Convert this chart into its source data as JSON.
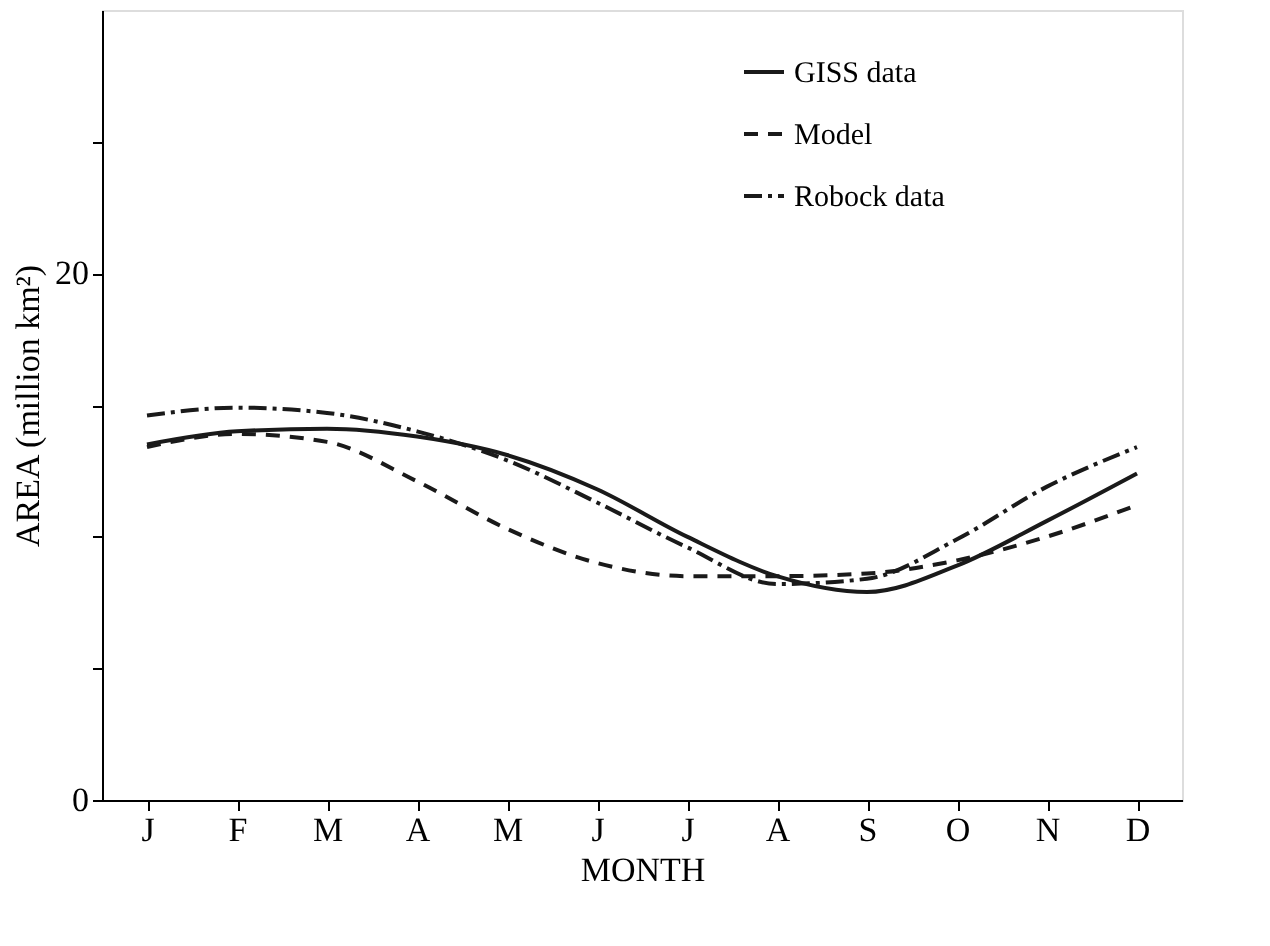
{
  "chart_data": {
    "type": "line",
    "xlabel": "MONTH",
    "ylabel": "AREA (million km²)",
    "categories": [
      "J",
      "F",
      "M",
      "A",
      "M",
      "J",
      "J",
      "A",
      "S",
      "O",
      "N",
      "D"
    ],
    "ylim": [
      0,
      30
    ],
    "yticks": [
      0,
      {
        "value": 5,
        "label": null
      },
      {
        "value": 10,
        "label": null
      },
      {
        "value": 15,
        "label": null
      },
      20,
      {
        "value": 25,
        "label": null
      }
    ],
    "legend": "top right",
    "grid": false,
    "series": [
      {
        "name": "GISS data",
        "color": "#1a1a1a",
        "line_style": "solid",
        "values": [
          13.5,
          14.0,
          14.1,
          13.8,
          13.1,
          11.8,
          10.0,
          8.5,
          7.9,
          8.9,
          10.6,
          12.4
        ]
      },
      {
        "name": "Model",
        "color": "#1a1a1a",
        "line_style": "dashed",
        "values": [
          13.4,
          13.9,
          13.6,
          12.1,
          10.3,
          9.0,
          8.5,
          8.5,
          8.6,
          9.1,
          10.0,
          11.2
        ]
      },
      {
        "name": "Robock data",
        "color": "#1a1a1a",
        "line_style": "dashdot",
        "values": [
          14.6,
          14.9,
          14.7,
          14.0,
          12.9,
          11.3,
          9.6,
          8.2,
          8.4,
          9.9,
          11.9,
          13.4
        ]
      }
    ]
  }
}
